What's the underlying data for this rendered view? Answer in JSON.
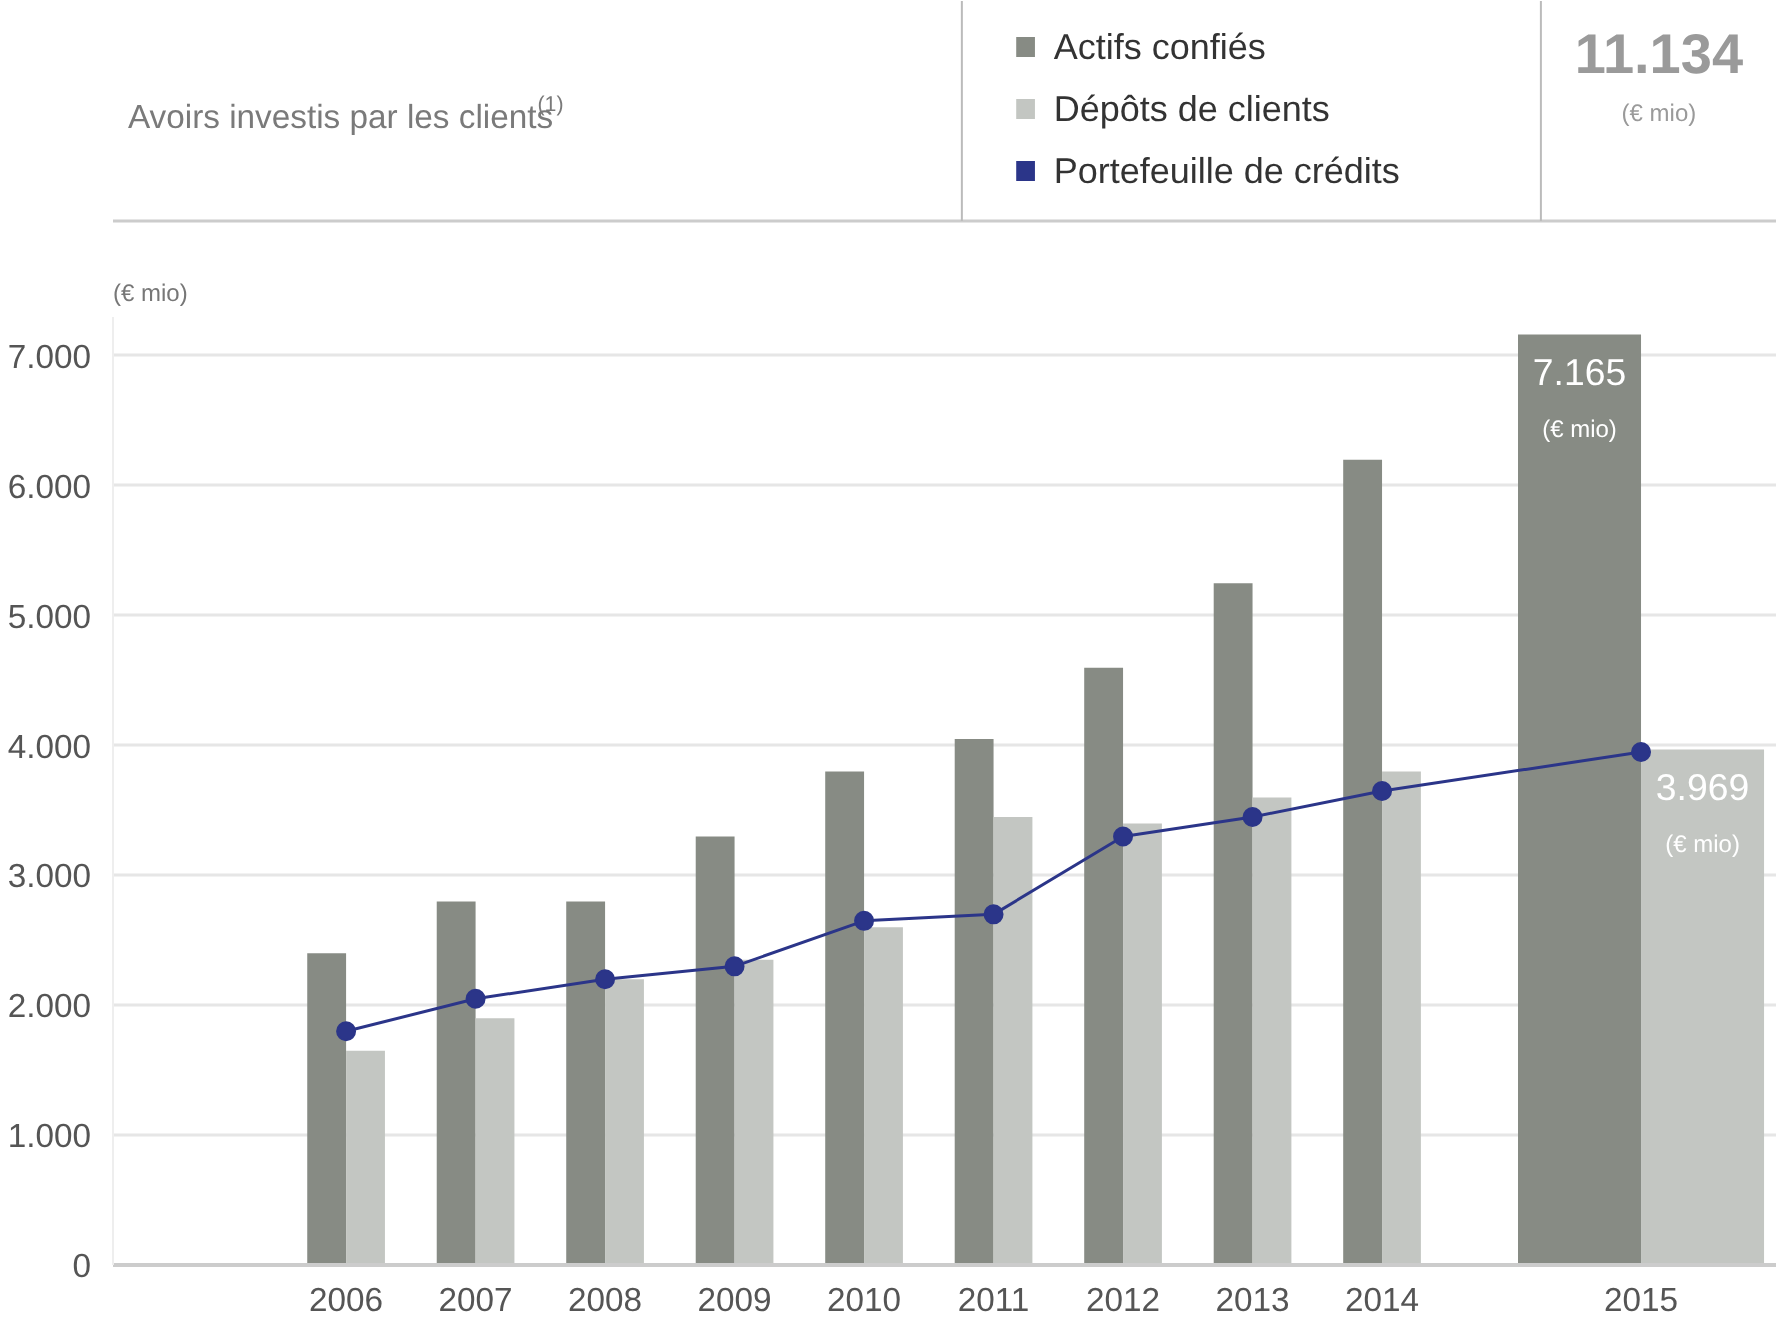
{
  "chart_data": {
    "type": "bar",
    "title": "Avoirs investis par les clients$^{(1)}$",
    "ylabel": "(€ mio)",
    "categories": [
      "2006",
      "2007",
      "2008",
      "2009",
      "2010",
      "2011",
      "2012",
      "2013",
      "2014",
      "2015"
    ],
    "series": [
      {
        "name": "Actifs confiés",
        "color": "#878b84",
        "values": [
          2400,
          2800,
          2800,
          3300,
          3800,
          4050,
          4600,
          5250,
          6200,
          7165
        ],
        "value_labels": [
          null,
          null,
          null,
          null,
          null,
          null,
          null,
          null,
          null,
          "7.165"
        ]
      },
      {
        "name": "Dépôts de clients",
        "color": "#c3c6c2",
        "values": [
          1650,
          1900,
          2200,
          2350,
          2600,
          3450,
          3400,
          3600,
          3800,
          3969
        ],
        "value_labels": [
          null,
          null,
          null,
          null,
          null,
          null,
          null,
          null,
          null,
          "3.969"
        ]
      },
      {
        "name": "Portefeuille de crédits",
        "color": "#2b3589",
        "type": "line",
        "marker": "circle",
        "values": [
          1800,
          2050,
          2200,
          2300,
          2650,
          2700,
          3300,
          3450,
          3650,
          3950
        ]
      }
    ],
    "ylim": [
      0,
      7300
    ],
    "yticks": [
      {
        "value": 0,
        "label": "0"
      },
      {
        "value": 1000,
        "label": "1.000"
      },
      {
        "value": 2000,
        "label": "2.000"
      },
      {
        "value": 3000,
        "label": "3.000"
      },
      {
        "value": 4000,
        "label": "4.000"
      },
      {
        "value": 5000,
        "label": "5.000"
      },
      {
        "value": 6000,
        "label": "6.000"
      },
      {
        "value": 7000,
        "label": "7.000"
      }
    ],
    "grid": "y",
    "legend": "top",
    "annotations": [
      "11.134",
      "(€ mio)",
      "(€ mio)",
      "(€ mio)"
    ]
  }
}
